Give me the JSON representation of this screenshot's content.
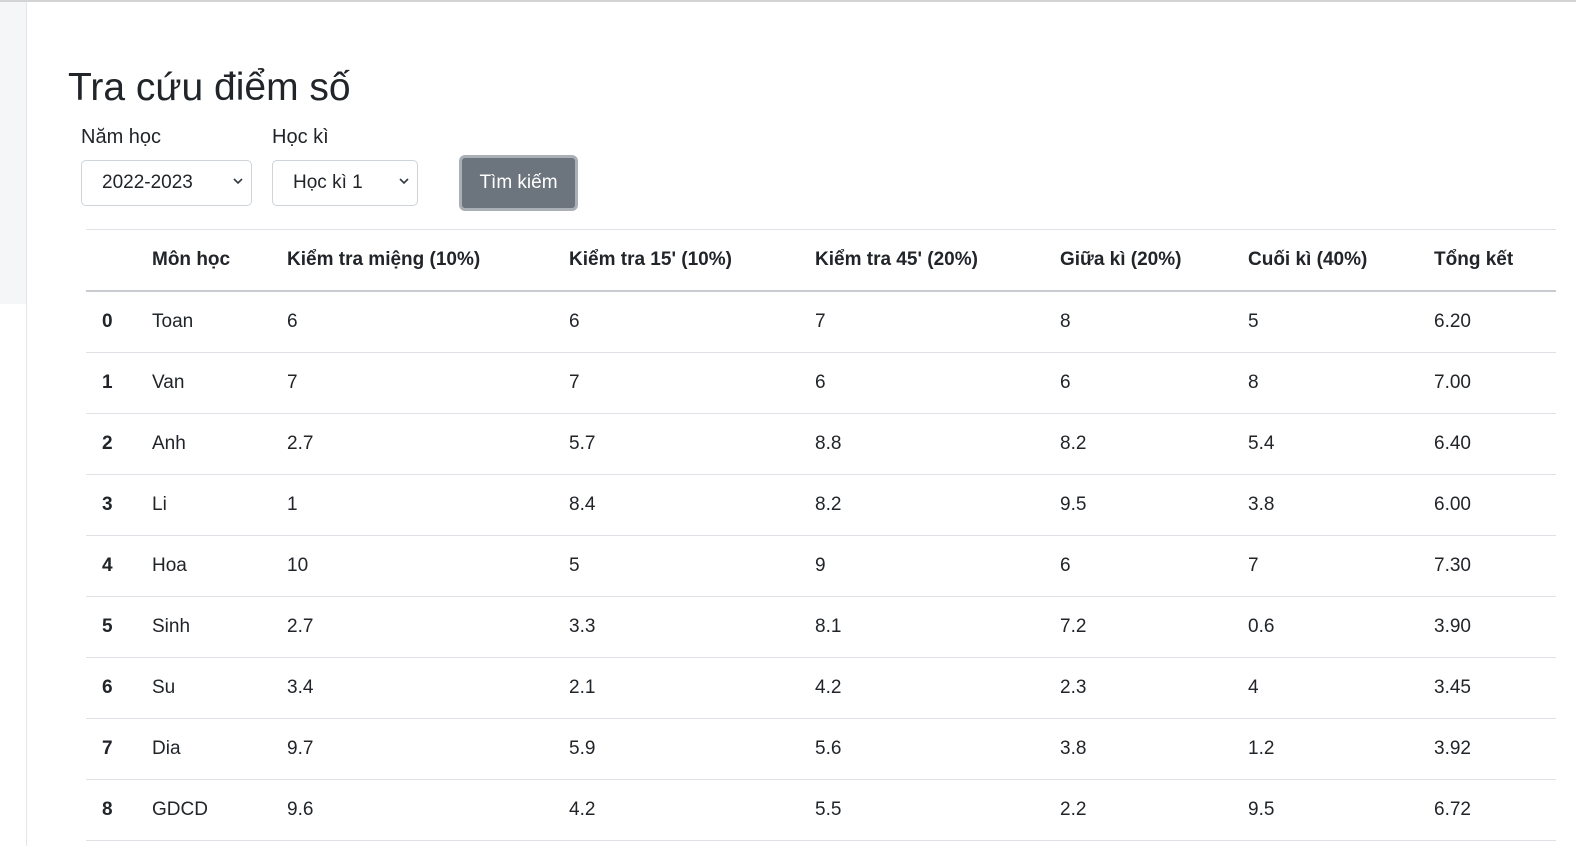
{
  "page": {
    "title": "Tra cứu điểm số"
  },
  "filters": {
    "year": {
      "label": "Năm học",
      "value": "2022-2023"
    },
    "semester": {
      "label": "Học kì",
      "value": "Học kì 1"
    },
    "search_label": "Tìm kiếm"
  },
  "table": {
    "headers": [
      "",
      "Môn học",
      "Kiểm tra miệng (10%)",
      "Kiểm tra 15' (10%)",
      "Kiểm tra 45' (20%)",
      "Giữa kì (20%)",
      "Cuối kì (40%)",
      "Tổng kết"
    ],
    "rows": [
      [
        "0",
        "Toan",
        "6",
        "6",
        "7",
        "8",
        "5",
        "6.20"
      ],
      [
        "1",
        "Van",
        "7",
        "7",
        "6",
        "6",
        "8",
        "7.00"
      ],
      [
        "2",
        "Anh",
        "2.7",
        "5.7",
        "8.8",
        "8.2",
        "5.4",
        "6.40"
      ],
      [
        "3",
        "Li",
        "1",
        "8.4",
        "8.2",
        "9.5",
        "3.8",
        "6.00"
      ],
      [
        "4",
        "Hoa",
        "10",
        "5",
        "9",
        "6",
        "7",
        "7.30"
      ],
      [
        "5",
        "Sinh",
        "2.7",
        "3.3",
        "8.1",
        "7.2",
        "0.6",
        "3.90"
      ],
      [
        "6",
        "Su",
        "3.4",
        "2.1",
        "4.2",
        "2.3",
        "4",
        "3.45"
      ],
      [
        "7",
        "Dia",
        "9.7",
        "5.9",
        "5.6",
        "3.8",
        "1.2",
        "3.92"
      ],
      [
        "8",
        "GDCD",
        "9.6",
        "4.2",
        "5.5",
        "2.2",
        "9.5",
        "6.72"
      ]
    ]
  }
}
